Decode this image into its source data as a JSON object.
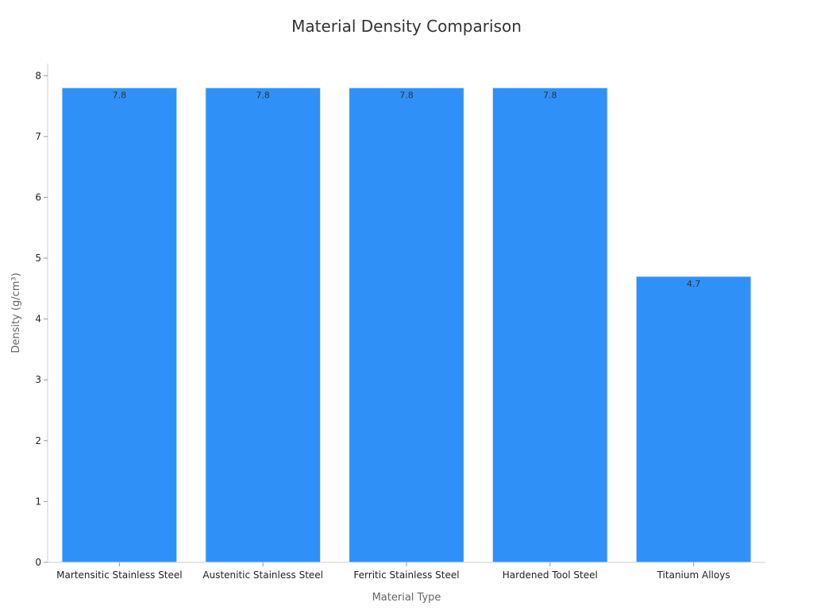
{
  "chart_data": {
    "type": "bar",
    "title": "Material Density Comparison",
    "xlabel": "Material Type",
    "ylabel": "Density (g/cm³)",
    "categories": [
      "Martensitic Stainless Steel",
      "Austenitic Stainless Steel",
      "Ferritic Stainless Steel",
      "Hardened Tool Steel",
      "Titanium Alloys"
    ],
    "values": [
      7.8,
      7.8,
      7.8,
      7.8,
      4.7
    ],
    "data_labels": [
      "7.8",
      "7.8",
      "7.8",
      "7.8",
      "4.7"
    ],
    "ylim": [
      0,
      8.2
    ],
    "yticks": [
      0,
      1,
      2,
      3,
      4,
      5,
      6,
      7,
      8
    ],
    "grid": false,
    "legend": "none",
    "bar_color": "#2f91f7"
  }
}
